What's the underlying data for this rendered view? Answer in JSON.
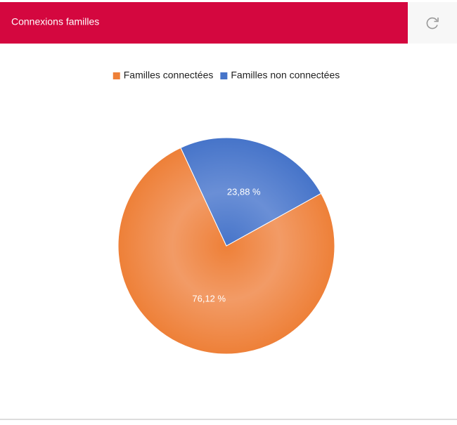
{
  "chart_data": {
    "type": "pie",
    "title": "Connexions familles",
    "categories": [
      "Familles connectées",
      "Familles non connectées"
    ],
    "values": [
      76.12,
      23.88
    ],
    "value_labels": [
      "76,12 %",
      "23,88 %"
    ],
    "colors": [
      "#ee8038",
      "#4674c9"
    ],
    "legend": "top"
  }
}
